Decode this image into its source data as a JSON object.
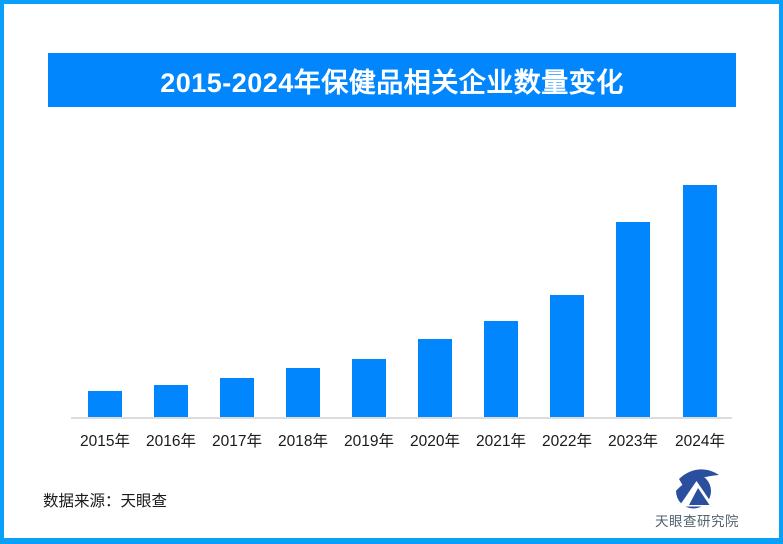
{
  "page": {
    "background_color": "#ffffff",
    "border_color": "#0a9ff9"
  },
  "chart_data": {
    "type": "bar",
    "title": "2015-2024年保健品相关企业数量变化",
    "categories": [
      "2015年",
      "2016年",
      "2017年",
      "2018年",
      "2019年",
      "2020年",
      "2021年",
      "2022年",
      "2023年",
      "2024年"
    ],
    "values": [
      11.2,
      13.8,
      16.8,
      21.1,
      25.0,
      33.6,
      41.4,
      52.6,
      84.1,
      100
    ],
    "value_axis_visible": false,
    "value_note": "no y-axis ticks, gridlines or data labels shown; values are relative bar heights normalized to 2024 = 100",
    "xlabel": "",
    "ylabel": "",
    "legend": false,
    "grid": false,
    "bar_color": "#0286fe",
    "banner_color": "#0286fe",
    "title_color": "#ffffff",
    "axis_line_color": "#dcdcdc"
  },
  "footer": {
    "source_label": "数据来源：天眼查",
    "logo_text": "天眼查研究院",
    "logo_color": "#2a4f9e"
  }
}
